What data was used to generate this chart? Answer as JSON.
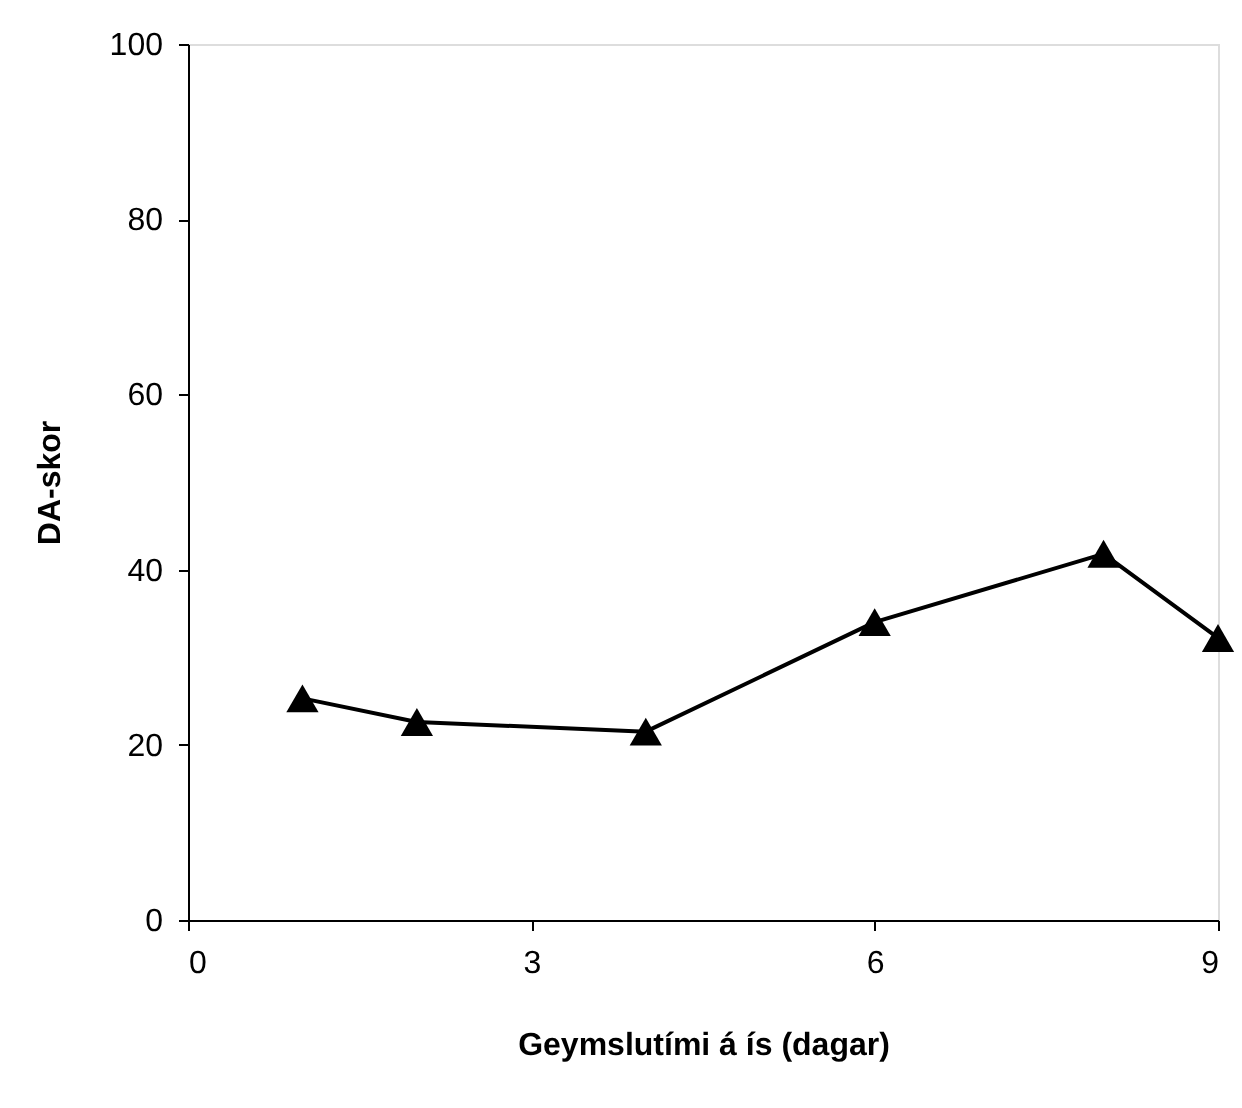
{
  "chart_data": {
    "type": "line",
    "xlabel": "Geymslutími á ís (dagar)",
    "ylabel": "DA-skor",
    "x": [
      1,
      2,
      4,
      6,
      8,
      9
    ],
    "series": [
      {
        "color": "#000000",
        "values": [
          25.3,
          22.6,
          21.5,
          34.0,
          41.8,
          32.2
        ]
      }
    ],
    "xlim": [
      0,
      9
    ],
    "xticks": [
      0,
      3,
      6,
      9
    ],
    "ylim": [
      0,
      100
    ],
    "yticks": [
      0,
      20,
      40,
      60,
      80,
      100
    ],
    "grid": false,
    "marker": "triangle",
    "line_style": "solid"
  }
}
